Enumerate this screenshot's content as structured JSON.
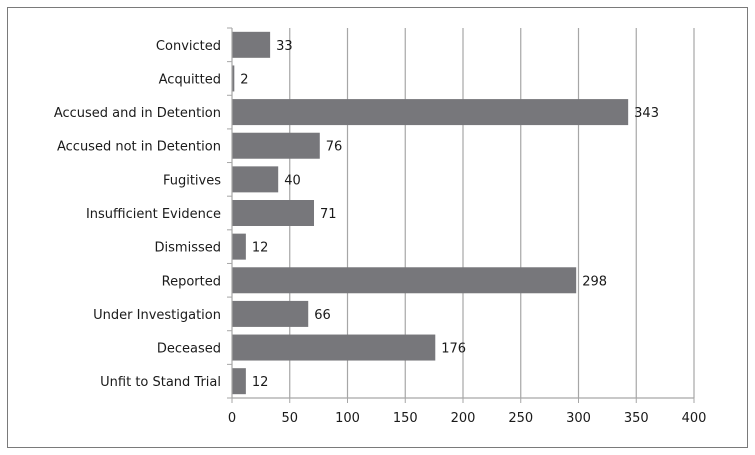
{
  "chart_data": {
    "type": "bar",
    "orientation": "horizontal",
    "categories": [
      "Convicted",
      "Acquitted",
      "Accused and in Detention",
      "Accused not in Detention",
      "Fugitives",
      "Insufficient Evidence",
      "Dismissed",
      "Reported",
      "Under Investigation",
      "Deceased",
      "Unfit to Stand Trial"
    ],
    "values": [
      33,
      2,
      343,
      76,
      40,
      71,
      12,
      298,
      66,
      176,
      12
    ],
    "data_labels": [
      "33",
      "2",
      "343",
      "76",
      "40",
      "71",
      "12",
      "298",
      "66",
      "176",
      "12"
    ],
    "xlim": [
      0,
      400
    ],
    "x_ticks": [
      "0",
      "50",
      "100",
      "150",
      "200",
      "250",
      "300",
      "350",
      "400"
    ],
    "grid": "vertical",
    "legend": "none",
    "colors": {
      "bar": "#77777b",
      "grid": "#a6a6a6",
      "axis": "#a6a6a6"
    }
  }
}
